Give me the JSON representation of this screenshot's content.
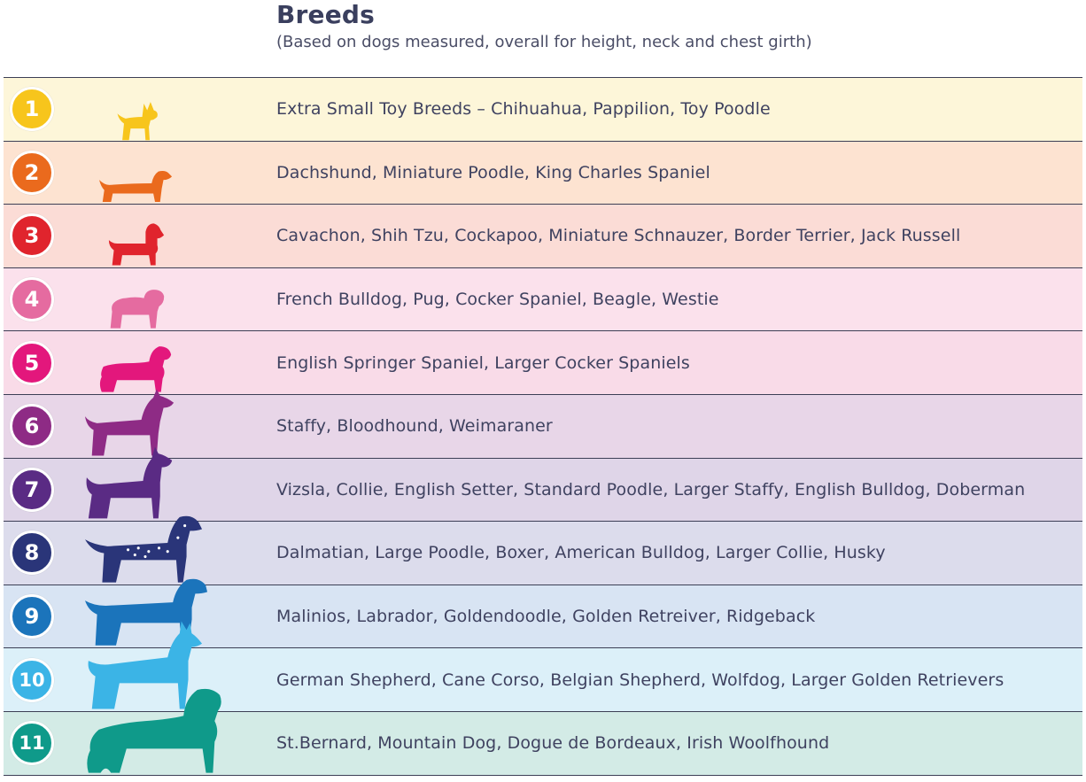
{
  "header": {
    "title": "Breeds",
    "subtitle": "(Based on dogs measured, overall for height, neck and chest girth)"
  },
  "rows": [
    {
      "number": "1",
      "breeds": "Extra Small Toy Breeds – Chihuahua, Pappilion, Toy Poodle",
      "color": "#f7c51c",
      "background": "#fdf6d9",
      "icon": "chihuahua-icon"
    },
    {
      "number": "2",
      "breeds": "Dachshund, Miniature Poodle, King Charles Spaniel",
      "color": "#ea6a1d",
      "background": "#fde3d1",
      "icon": "dachshund-icon"
    },
    {
      "number": "3",
      "breeds": "Cavachon, Shih Tzu, Cockapoo, Miniature Schnauzer, Border Terrier, Jack Russell",
      "color": "#e0242d",
      "background": "#fbdcd6",
      "icon": "schnauzer-icon"
    },
    {
      "number": "4",
      "breeds": "French Bulldog, Pug, Cocker Spaniel, Beagle, Westie",
      "color": "#e56ba0",
      "background": "#fbe1ec",
      "icon": "pug-icon"
    },
    {
      "number": "5",
      "breeds": "English Springer Spaniel, Larger Cocker Spaniels",
      "color": "#e3177c",
      "background": "#f9dbe8",
      "icon": "spaniel-icon"
    },
    {
      "number": "6",
      "breeds": "Staffy, Bloodhound, Weimaraner",
      "color": "#8e2b85",
      "background": "#e8d6e8",
      "icon": "weimaraner-icon"
    },
    {
      "number": "7",
      "breeds": "Vizsla, Collie, English Setter, Standard Poodle, Larger Staffy, English Bulldog, Doberman",
      "color": "#5a2b84",
      "background": "#dfd5e8",
      "icon": "doberman-icon"
    },
    {
      "number": "8",
      "breeds": "Dalmatian, Large Poodle, Boxer, American Bulldog, Larger Collie, Husky",
      "color": "#2a3579",
      "background": "#dcdcec",
      "icon": "dalmatian-icon"
    },
    {
      "number": "9",
      "breeds": "Malinios, Labrador, Goldendoodle, Golden Retreiver, Ridgeback",
      "color": "#1b74bb",
      "background": "#d8e4f3",
      "icon": "labrador-icon"
    },
    {
      "number": "10",
      "breeds": "German Shepherd, Cane Corso, Belgian Shepherd, Wolfdog, Larger Golden Retrievers",
      "color": "#3bb4e6",
      "background": "#dcf0f9",
      "icon": "german-shepherd-icon"
    },
    {
      "number": "11",
      "breeds": "St.Bernard, Mountain Dog, Dogue de Bordeaux, Irish Woolfhound",
      "color": "#0f9a8a",
      "background": "#d3ebe6",
      "icon": "st-bernard-icon"
    }
  ]
}
